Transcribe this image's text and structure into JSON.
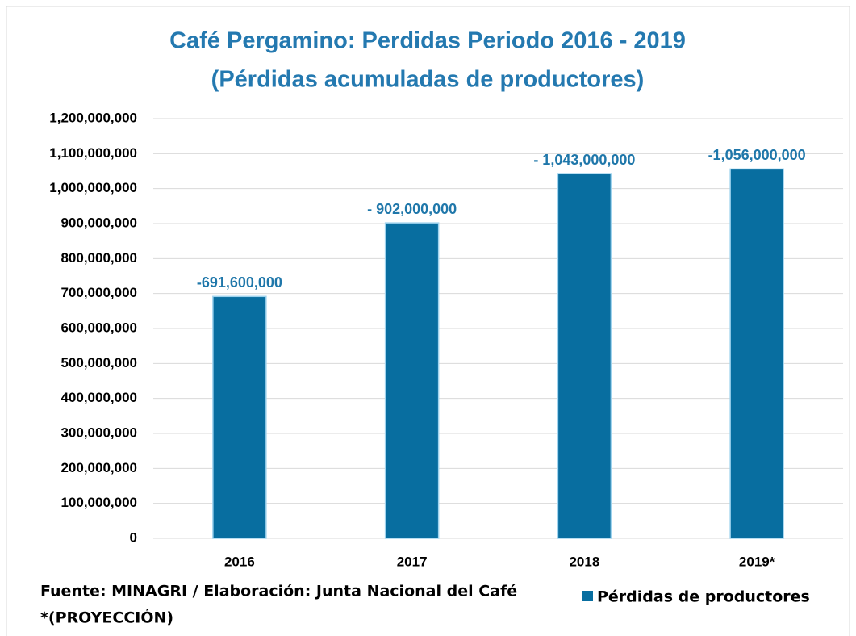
{
  "chart_data": {
    "type": "bar",
    "title": "Café Pergamino: Perdidas Periodo 2016 - 2019",
    "subtitle": "(Pérdidas acumuladas de productores)",
    "categories": [
      "2016",
      "2017",
      "2018",
      "2019*"
    ],
    "series": [
      {
        "name": "Pérdidas de productores",
        "color": "#086ea0",
        "values": [
          691600000,
          902000000,
          1043000000,
          1056000000
        ],
        "value_labels": [
          "-691,600,000",
          "- 902,000,000",
          "- 1,043,000,000",
          "-1,056,000,000"
        ]
      }
    ],
    "ylim": [
      0,
      1200000000
    ],
    "yticks": [
      0,
      {
        "value": 100000000,
        "label": "100,000,000"
      },
      {
        "value": 200000000,
        "label": "200,000,000"
      },
      {
        "value": 300000000,
        "label": "300,000,000"
      },
      {
        "value": 400000000,
        "label": "400,000,000"
      },
      {
        "value": 500000000,
        "label": "500,000,000"
      },
      {
        "value": 600000000,
        "label": "600,000,000"
      },
      {
        "value": 700000000,
        "label": "700,000,000"
      },
      {
        "value": 800000000,
        "label": "800,000,000"
      },
      {
        "value": 900000000,
        "label": "900,000,000"
      },
      {
        "value": 1000000000,
        "label": "1,000,000,000"
      },
      {
        "value": 1100000000,
        "label": "1,100,000,000"
      },
      {
        "value": 1200000000,
        "label": "1,200,000,000"
      }
    ],
    "grid": true,
    "legend": "bottom-right",
    "annotations": [
      "Fuente: MINAGRI / Elaboración: Junta Nacional del Café",
      "*(PROYECCIÓN)"
    ]
  }
}
